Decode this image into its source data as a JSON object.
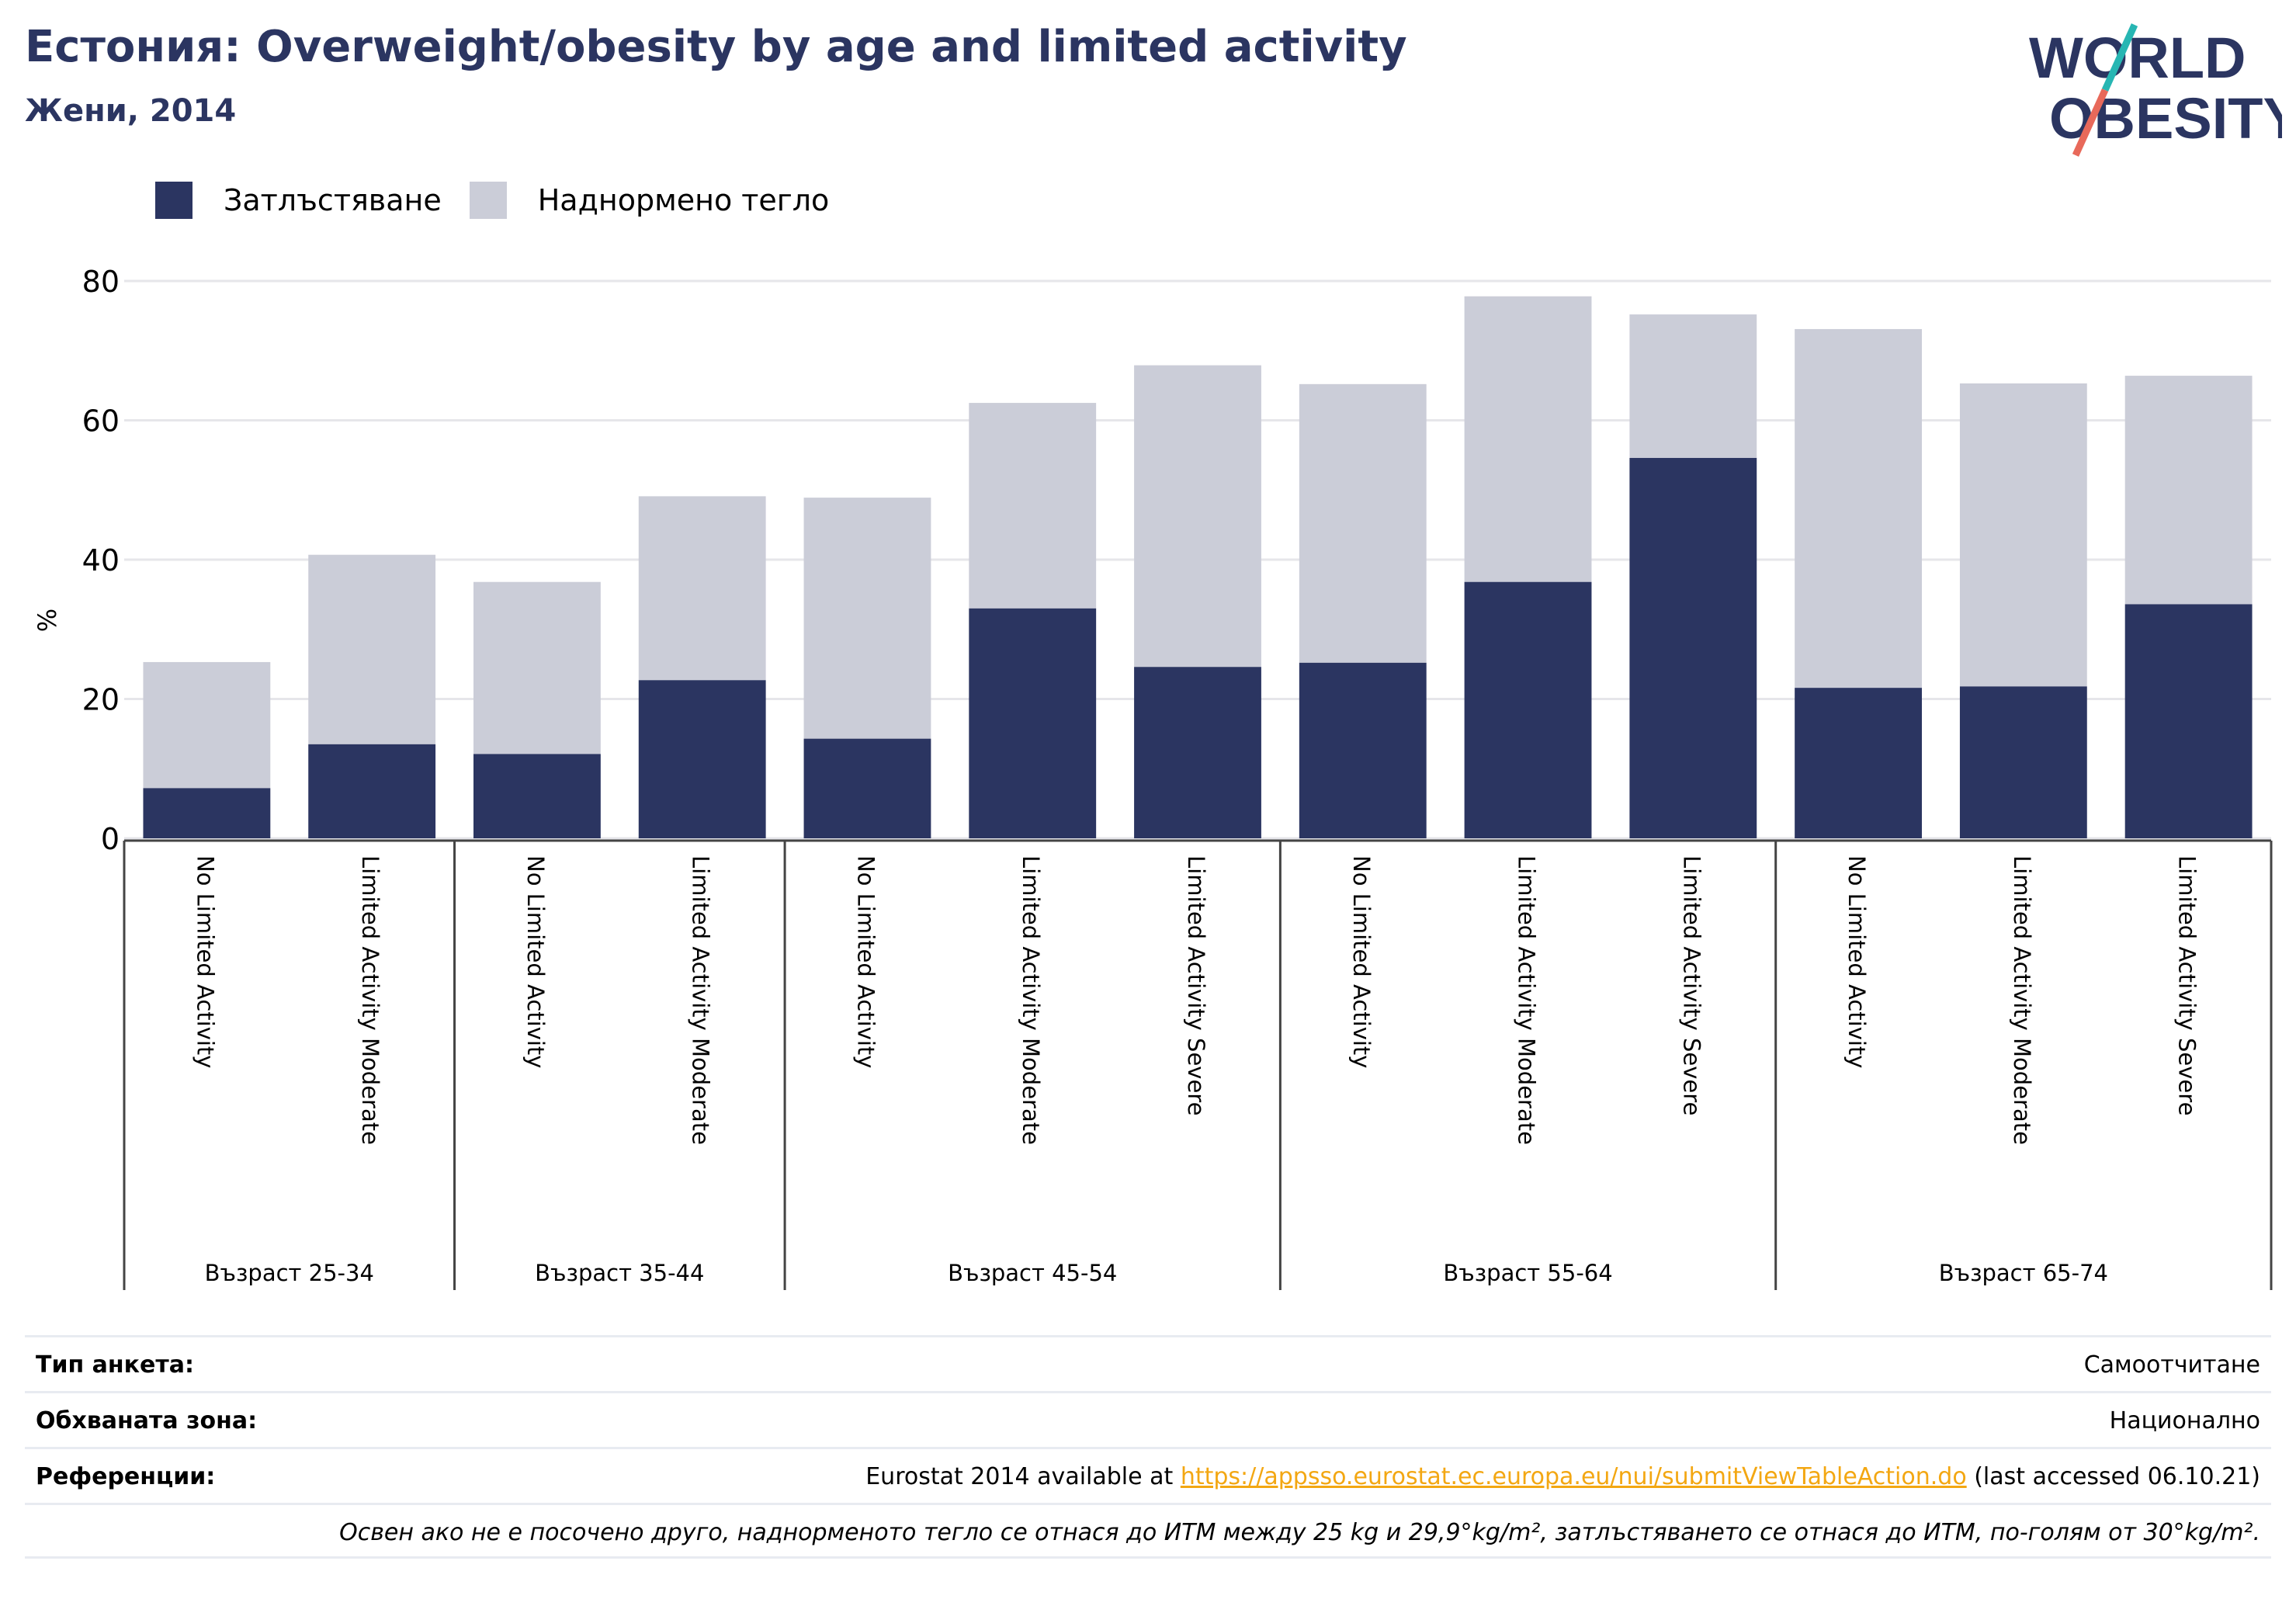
{
  "header": {
    "title": "Естония: Overweight/obesity by age and limited activity",
    "subtitle": "Жени, 2014"
  },
  "logo": {
    "line1": "WORLD",
    "line2": "OBESITY",
    "colors": {
      "text": "#2b3561",
      "slash_teal": "#27b6b3",
      "slash_coral": "#e8695a"
    }
  },
  "legend": {
    "items": [
      {
        "label": "Затлъстяване",
        "color": "#2b3561"
      },
      {
        "label": "Наднормено тегло",
        "color": "#cbcdd8"
      }
    ]
  },
  "chart_data": {
    "type": "bar",
    "stacked": true,
    "ylabel": "%",
    "ylim": [
      0,
      80
    ],
    "yticks": [
      0,
      20,
      40,
      60,
      80
    ],
    "grid": true,
    "legend_position": "top-left",
    "groups": [
      {
        "label": "Възраст 25-34",
        "categories": [
          "No Limited Activity",
          "Limited Activity Moderate"
        ]
      },
      {
        "label": "Възраст 35-44",
        "categories": [
          "No Limited Activity",
          "Limited Activity Moderate"
        ]
      },
      {
        "label": "Възраст 45-54",
        "categories": [
          "No Limited Activity",
          "Limited Activity Moderate",
          "Limited Activity Severe"
        ]
      },
      {
        "label": "Възраст 55-64",
        "categories": [
          "No Limited Activity",
          "Limited Activity Moderate",
          "Limited Activity Severe"
        ]
      },
      {
        "label": "Възраст 65-74",
        "categories": [
          "No Limited Activity",
          "Limited Activity Moderate",
          "Limited Activity Severe"
        ]
      }
    ],
    "series": [
      {
        "name": "Затлъстяване",
        "color": "#2b3561",
        "values": [
          7.2,
          13.5,
          12.1,
          22.7,
          14.3,
          33.0,
          24.6,
          25.2,
          36.8,
          54.6,
          21.6,
          21.8,
          33.6
        ]
      },
      {
        "name": "Наднормено тегло",
        "color": "#cbcdd8",
        "values": [
          18.1,
          27.2,
          24.7,
          26.4,
          34.6,
          29.5,
          43.3,
          40.0,
          41.0,
          20.6,
          51.5,
          43.5,
          32.8
        ]
      }
    ]
  },
  "info": {
    "survey_type_label": "Тип анкета:",
    "survey_type_value": "Самоотчитане",
    "coverage_label": "Обхваната зона:",
    "coverage_value": "Национално",
    "references_label": "Референции:",
    "references_prefix": "Eurostat 2014 available at ",
    "references_link": "https://appsso.eurostat.ec.europa.eu/nui/submitViewTableAction.do",
    "references_suffix": " (last accessed 06.10.21)",
    "note": "Освен ако не е посочено друго, наднорменото тегло се отнася до ИТМ между 25 kg и 29,9°kg/m², затлъстяването се отнася до ИТМ, по-голям от 30°kg/m²."
  }
}
